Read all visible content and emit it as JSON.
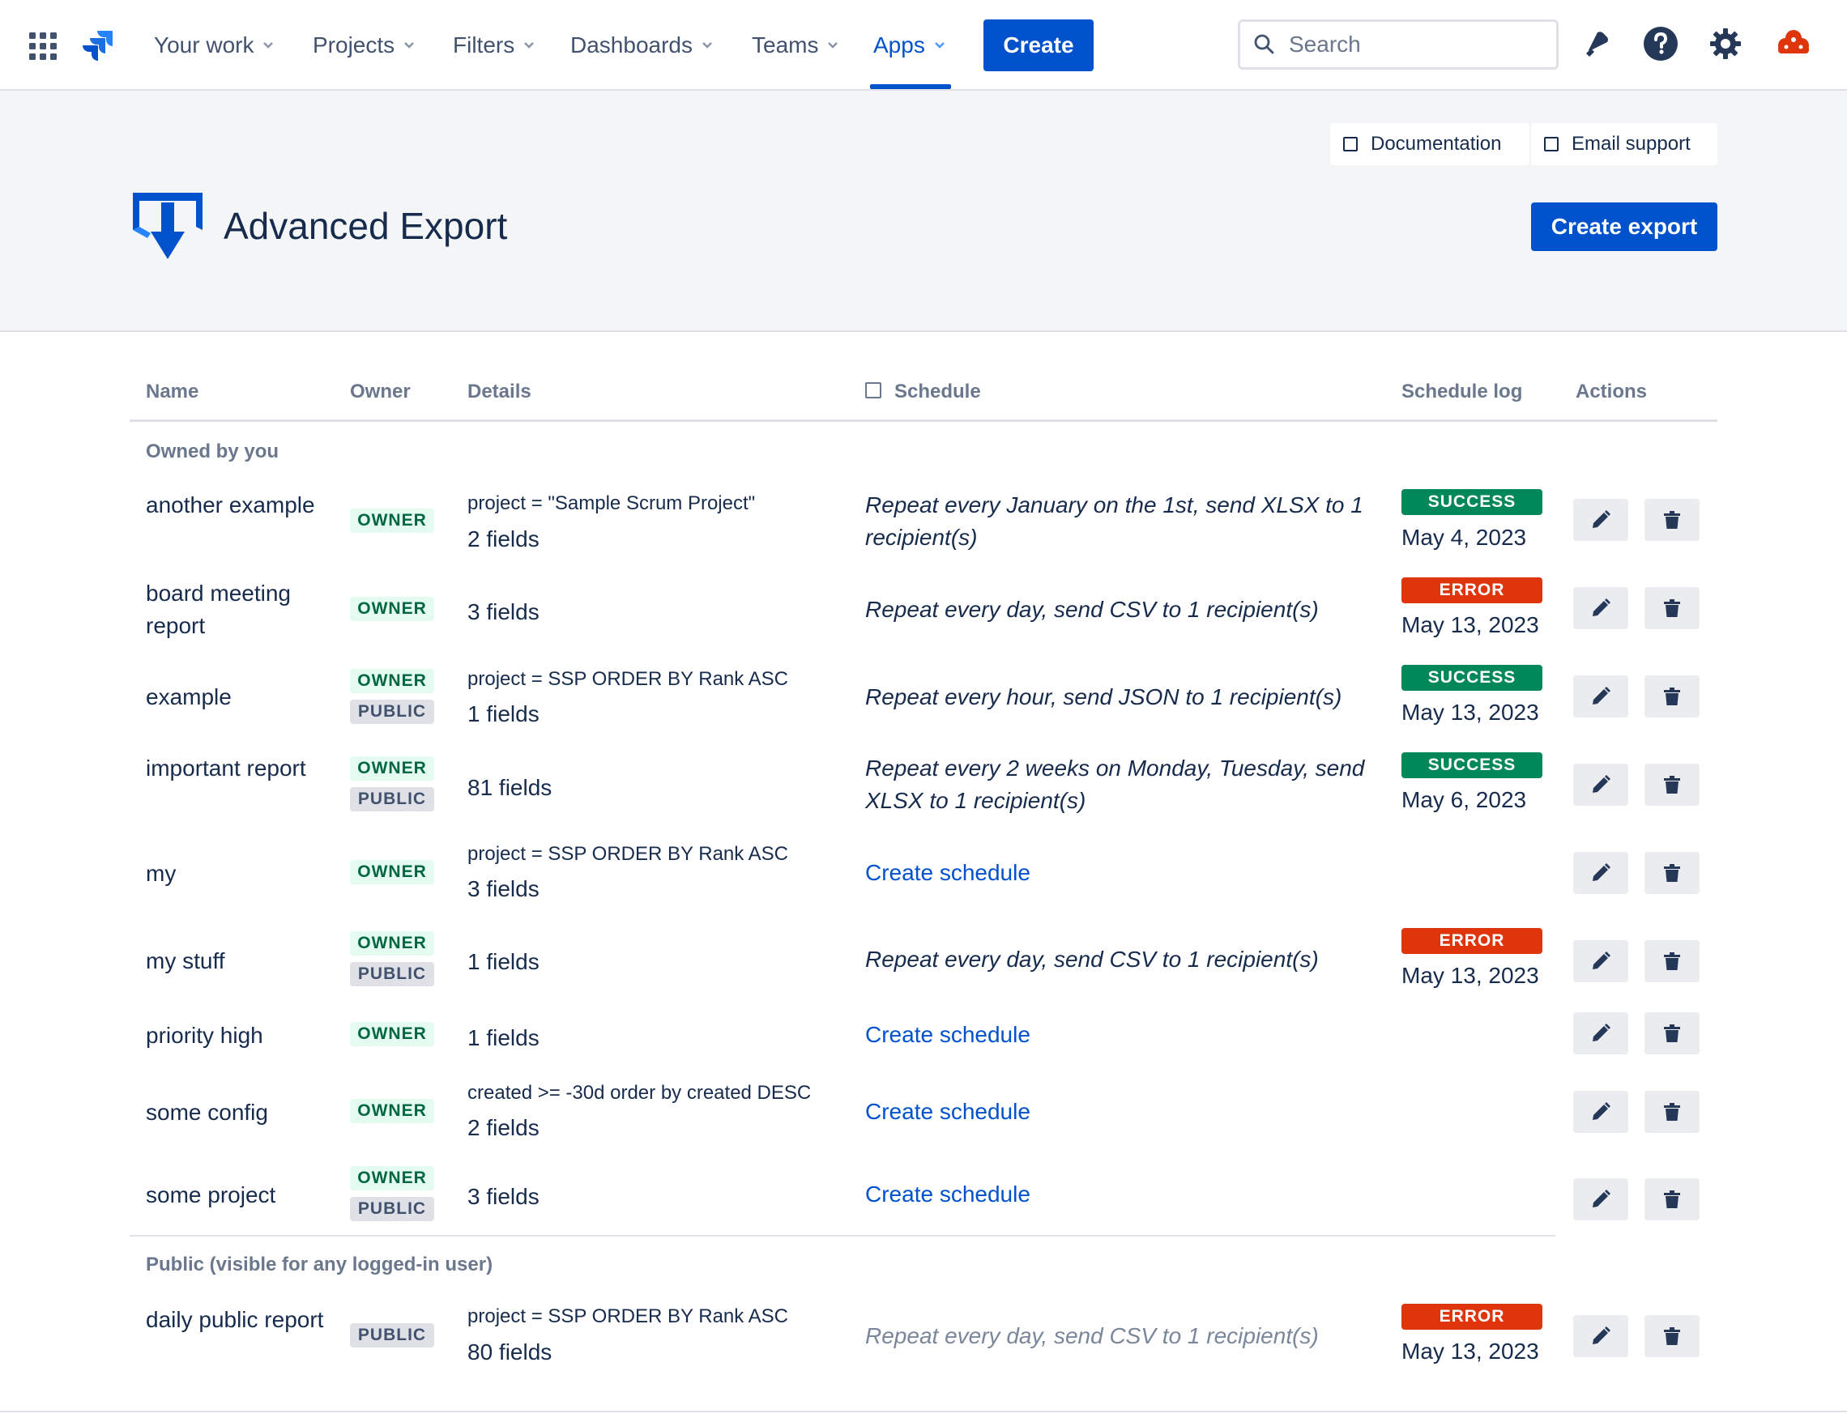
{
  "nav": {
    "items": [
      {
        "label": "Your work"
      },
      {
        "label": "Projects"
      },
      {
        "label": "Filters"
      },
      {
        "label": "Dashboards"
      },
      {
        "label": "Teams"
      },
      {
        "label": "Apps"
      }
    ],
    "active_item": "Apps",
    "create_label": "Create",
    "search_placeholder": "Search",
    "icons": [
      "app-switcher-icon",
      "jira-logo-icon",
      "notifications-icon",
      "help-icon",
      "settings-icon",
      "user-avatar-icon"
    ]
  },
  "header": {
    "documentation_label": "Documentation",
    "email_support_label": "Email support",
    "title": "Advanced Export",
    "create_export_label": "Create export",
    "brand_color": "#0052CC"
  },
  "table": {
    "columns": {
      "name": "Name",
      "owner": "Owner",
      "details": "Details",
      "schedule": "Schedule",
      "schedule_log": "Schedule log",
      "actions": "Actions"
    },
    "sections": [
      {
        "label": "Owned by you",
        "rows": [
          {
            "name": "another example",
            "badges": [
              "OWNER"
            ],
            "jql": "project = \"Sample Scrum Project\"",
            "fields": "2 fields",
            "schedule": "Repeat every January on the 1st, send XLSX to 1 recipient(s)",
            "log_status": "SUCCESS",
            "log_date": "May 4, 2023"
          },
          {
            "name": "board meeting report",
            "badges": [
              "OWNER"
            ],
            "jql": "",
            "fields": "3 fields",
            "schedule": "Repeat every day, send CSV to 1 recipient(s)",
            "log_status": "ERROR",
            "log_date": "May 13, 2023"
          },
          {
            "name": "example",
            "badges": [
              "OWNER",
              "PUBLIC"
            ],
            "jql": "project = SSP ORDER BY Rank ASC",
            "fields": "1 fields",
            "schedule": "Repeat every hour, send JSON to 1 recipient(s)",
            "log_status": "SUCCESS",
            "log_date": "May 13, 2023"
          },
          {
            "name": "important report",
            "badges": [
              "OWNER",
              "PUBLIC"
            ],
            "jql": "",
            "fields": "81 fields",
            "schedule": "Repeat every 2 weeks on Monday, Tuesday, send XLSX to 1 recipient(s)",
            "log_status": "SUCCESS",
            "log_date": "May 6, 2023"
          },
          {
            "name": "my",
            "badges": [
              "OWNER"
            ],
            "jql": "project = SSP ORDER BY Rank ASC",
            "fields": "3 fields",
            "schedule_link": "Create schedule"
          },
          {
            "name": "my stuff",
            "badges": [
              "OWNER",
              "PUBLIC"
            ],
            "jql": "",
            "fields": "1 fields",
            "schedule": "Repeat every day, send CSV to 1 recipient(s)",
            "log_status": "ERROR",
            "log_date": "May 13, 2023"
          },
          {
            "name": "priority high",
            "badges": [
              "OWNER"
            ],
            "jql": "",
            "fields": "1 fields",
            "schedule_link": "Create schedule"
          },
          {
            "name": "some config",
            "badges": [
              "OWNER"
            ],
            "jql": "created >= -30d order by created DESC",
            "fields": "2 fields",
            "schedule_link": "Create schedule"
          },
          {
            "name": "some project",
            "badges": [
              "OWNER",
              "PUBLIC"
            ],
            "jql": "",
            "fields": "3 fields",
            "schedule_link": "Create schedule"
          }
        ]
      },
      {
        "label": "Public (visible for any logged-in user)",
        "rows": [
          {
            "name": "daily public report",
            "badges": [
              "PUBLIC"
            ],
            "jql": "project = SSP ORDER BY Rank ASC",
            "fields": "80 fields",
            "schedule": "Repeat every day, send CSV to 1 recipient(s)",
            "schedule_muted": true,
            "log_status": "ERROR",
            "log_date": "May 13, 2023"
          }
        ]
      }
    ],
    "status_colors": {
      "SUCCESS": "#00875A",
      "ERROR": "#DE350B"
    }
  }
}
